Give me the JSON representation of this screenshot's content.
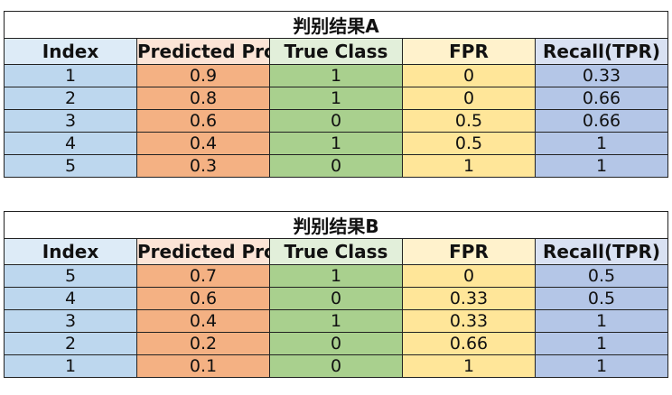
{
  "tables": [
    {
      "title": "判别结果A",
      "headers": [
        "Index",
        "Predicted Probability",
        "True Class",
        "FPR",
        "Recall(TPR)"
      ],
      "rows": [
        [
          "1",
          "0.9",
          "1",
          "0",
          "0.33"
        ],
        [
          "2",
          "0.8",
          "1",
          "0",
          "0.66"
        ],
        [
          "3",
          "0.6",
          "0",
          "0.5",
          "0.66"
        ],
        [
          "4",
          "0.4",
          "1",
          "0.5",
          "1"
        ],
        [
          "5",
          "0.3",
          "0",
          "1",
          "1"
        ]
      ]
    },
    {
      "title": "判别结果B",
      "headers": [
        "Index",
        "Predicted Probability",
        "True Class",
        "FPR",
        "Recall(TPR)"
      ],
      "rows": [
        [
          "5",
          "0.7",
          "1",
          "0",
          "0.5"
        ],
        [
          "4",
          "0.6",
          "0",
          "0.33",
          "0.5"
        ],
        [
          "3",
          "0.4",
          "1",
          "0.33",
          "1"
        ],
        [
          "2",
          "0.2",
          "0",
          "0.66",
          "1"
        ],
        [
          "1",
          "0.1",
          "0",
          "1",
          "1"
        ]
      ]
    }
  ],
  "colors": {
    "index_col": "#bdd7ee",
    "probability_col": "#f4b183",
    "true_class_col": "#a9d08e",
    "fpr_col": "#ffe699",
    "recall_col": "#b4c6e7"
  }
}
